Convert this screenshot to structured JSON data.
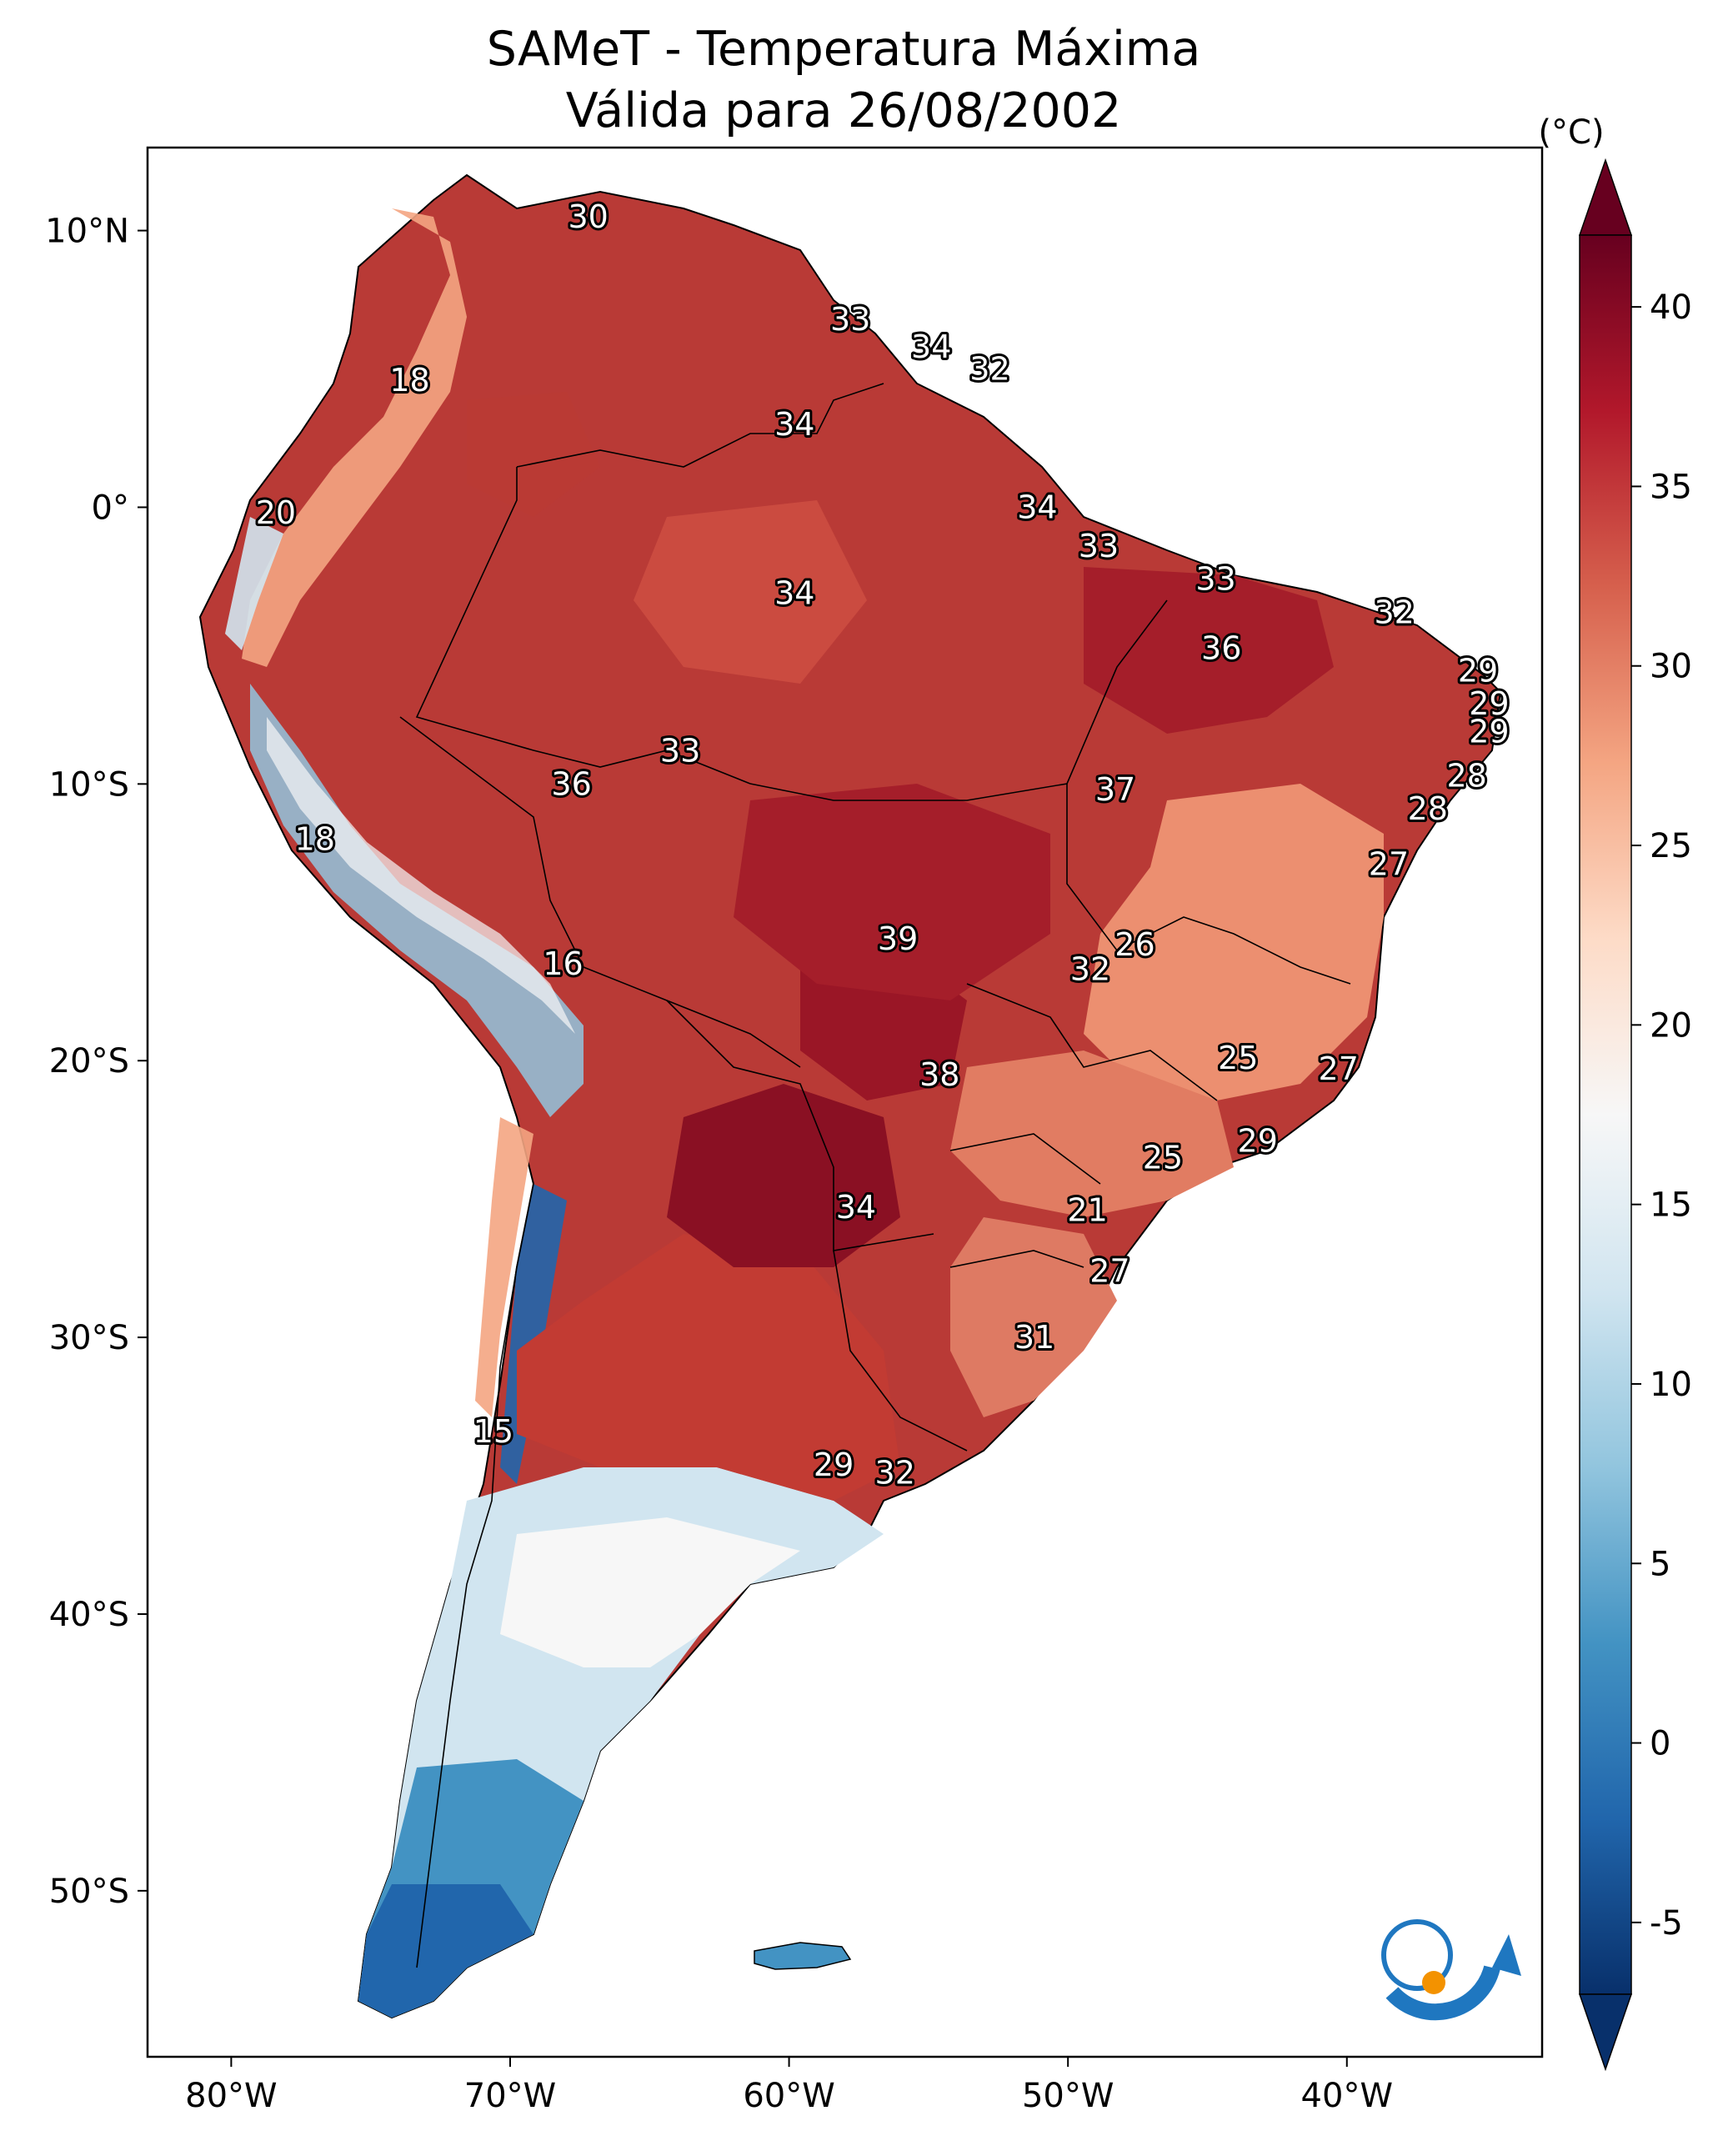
{
  "title_line1": "SAMeT - Temperatura Máxima",
  "title_line2": "Válida para 26/08/2002",
  "colorbar": {
    "unit": "(°C)",
    "min": -7,
    "max": 42,
    "ticks": [
      {
        "value": 40,
        "label": "40"
      },
      {
        "value": 35,
        "label": "35"
      },
      {
        "value": 30,
        "label": "30"
      },
      {
        "value": 25,
        "label": "25"
      },
      {
        "value": 20,
        "label": "20"
      },
      {
        "value": 15,
        "label": "15"
      },
      {
        "value": 10,
        "label": "10"
      },
      {
        "value": 5,
        "label": "5"
      },
      {
        "value": 0,
        "label": "0"
      },
      {
        "value": -5,
        "label": "-5"
      }
    ],
    "colors": [
      "#08306b",
      "#2166ac",
      "#4393c3",
      "#92c5de",
      "#d1e5f0",
      "#f7f7f7",
      "#fddbc7",
      "#f4a582",
      "#d6604d",
      "#b2182b",
      "#67001f"
    ]
  },
  "map": {
    "lon_range": [
      -83,
      -33
    ],
    "lat_range": [
      -56,
      13
    ],
    "lon_ticks": [
      {
        "value": -80,
        "label": "80°W"
      },
      {
        "value": -70,
        "label": "70°W"
      },
      {
        "value": -60,
        "label": "60°W"
      },
      {
        "value": -50,
        "label": "50°W"
      },
      {
        "value": -40,
        "label": "40°W"
      }
    ],
    "lat_ticks": [
      {
        "value": 10,
        "label": "10°N"
      },
      {
        "value": 0,
        "label": "0°"
      },
      {
        "value": -10,
        "label": "10°S"
      },
      {
        "value": -20,
        "label": "20°S"
      },
      {
        "value": -30,
        "label": "30°S"
      },
      {
        "value": -40,
        "label": "40°S"
      },
      {
        "value": -50,
        "label": "50°S"
      }
    ],
    "cities": [
      {
        "lon": -67.2,
        "lat": 10.5,
        "label": "30"
      },
      {
        "lon": -57.8,
        "lat": 6.8,
        "label": "33"
      },
      {
        "lon": -54.9,
        "lat": 5.8,
        "label": "34"
      },
      {
        "lon": -52.8,
        "lat": 5.0,
        "label": "32"
      },
      {
        "lon": -59.8,
        "lat": 3.0,
        "label": "34"
      },
      {
        "lon": -73.6,
        "lat": 4.6,
        "label": "18"
      },
      {
        "lon": -78.4,
        "lat": -0.2,
        "label": "20"
      },
      {
        "lon": -51.1,
        "lat": 0.0,
        "label": "34"
      },
      {
        "lon": -48.9,
        "lat": -1.4,
        "label": "33"
      },
      {
        "lon": -44.7,
        "lat": -2.6,
        "label": "33"
      },
      {
        "lon": -59.8,
        "lat": -3.1,
        "label": "34"
      },
      {
        "lon": -38.3,
        "lat": -3.8,
        "label": "32"
      },
      {
        "lon": -44.5,
        "lat": -5.1,
        "label": "36"
      },
      {
        "lon": -35.3,
        "lat": -5.9,
        "label": "29"
      },
      {
        "lon": -34.9,
        "lat": -7.1,
        "label": "29"
      },
      {
        "lon": -34.9,
        "lat": -8.1,
        "label": "29"
      },
      {
        "lon": -35.7,
        "lat": -9.7,
        "label": "28"
      },
      {
        "lon": -37.1,
        "lat": -10.9,
        "label": "28"
      },
      {
        "lon": -63.9,
        "lat": -8.8,
        "label": "33"
      },
      {
        "lon": -67.8,
        "lat": -10.0,
        "label": "36"
      },
      {
        "lon": -48.3,
        "lat": -10.2,
        "label": "37"
      },
      {
        "lon": -77.0,
        "lat": -12.0,
        "label": "18"
      },
      {
        "lon": -38.5,
        "lat": -12.9,
        "label": "27"
      },
      {
        "lon": -56.1,
        "lat": -15.6,
        "label": "39"
      },
      {
        "lon": -47.6,
        "lat": -15.8,
        "label": "26"
      },
      {
        "lon": -49.2,
        "lat": -16.7,
        "label": "32"
      },
      {
        "lon": -68.1,
        "lat": -16.5,
        "label": "16"
      },
      {
        "lon": -43.9,
        "lat": -19.9,
        "label": "25"
      },
      {
        "lon": -40.3,
        "lat": -20.3,
        "label": "27"
      },
      {
        "lon": -54.6,
        "lat": -20.5,
        "label": "38"
      },
      {
        "lon": -43.2,
        "lat": -22.9,
        "label": "29"
      },
      {
        "lon": -46.6,
        "lat": -23.5,
        "label": "25"
      },
      {
        "lon": -49.3,
        "lat": -25.4,
        "label": "21"
      },
      {
        "lon": -57.6,
        "lat": -25.3,
        "label": "34"
      },
      {
        "lon": -48.5,
        "lat": -27.6,
        "label": "27"
      },
      {
        "lon": -51.2,
        "lat": -30.0,
        "label": "31"
      },
      {
        "lon": -70.6,
        "lat": -33.4,
        "label": "15"
      },
      {
        "lon": -58.4,
        "lat": -34.6,
        "label": "29"
      },
      {
        "lon": -56.2,
        "lat": -34.9,
        "label": "32"
      }
    ]
  }
}
